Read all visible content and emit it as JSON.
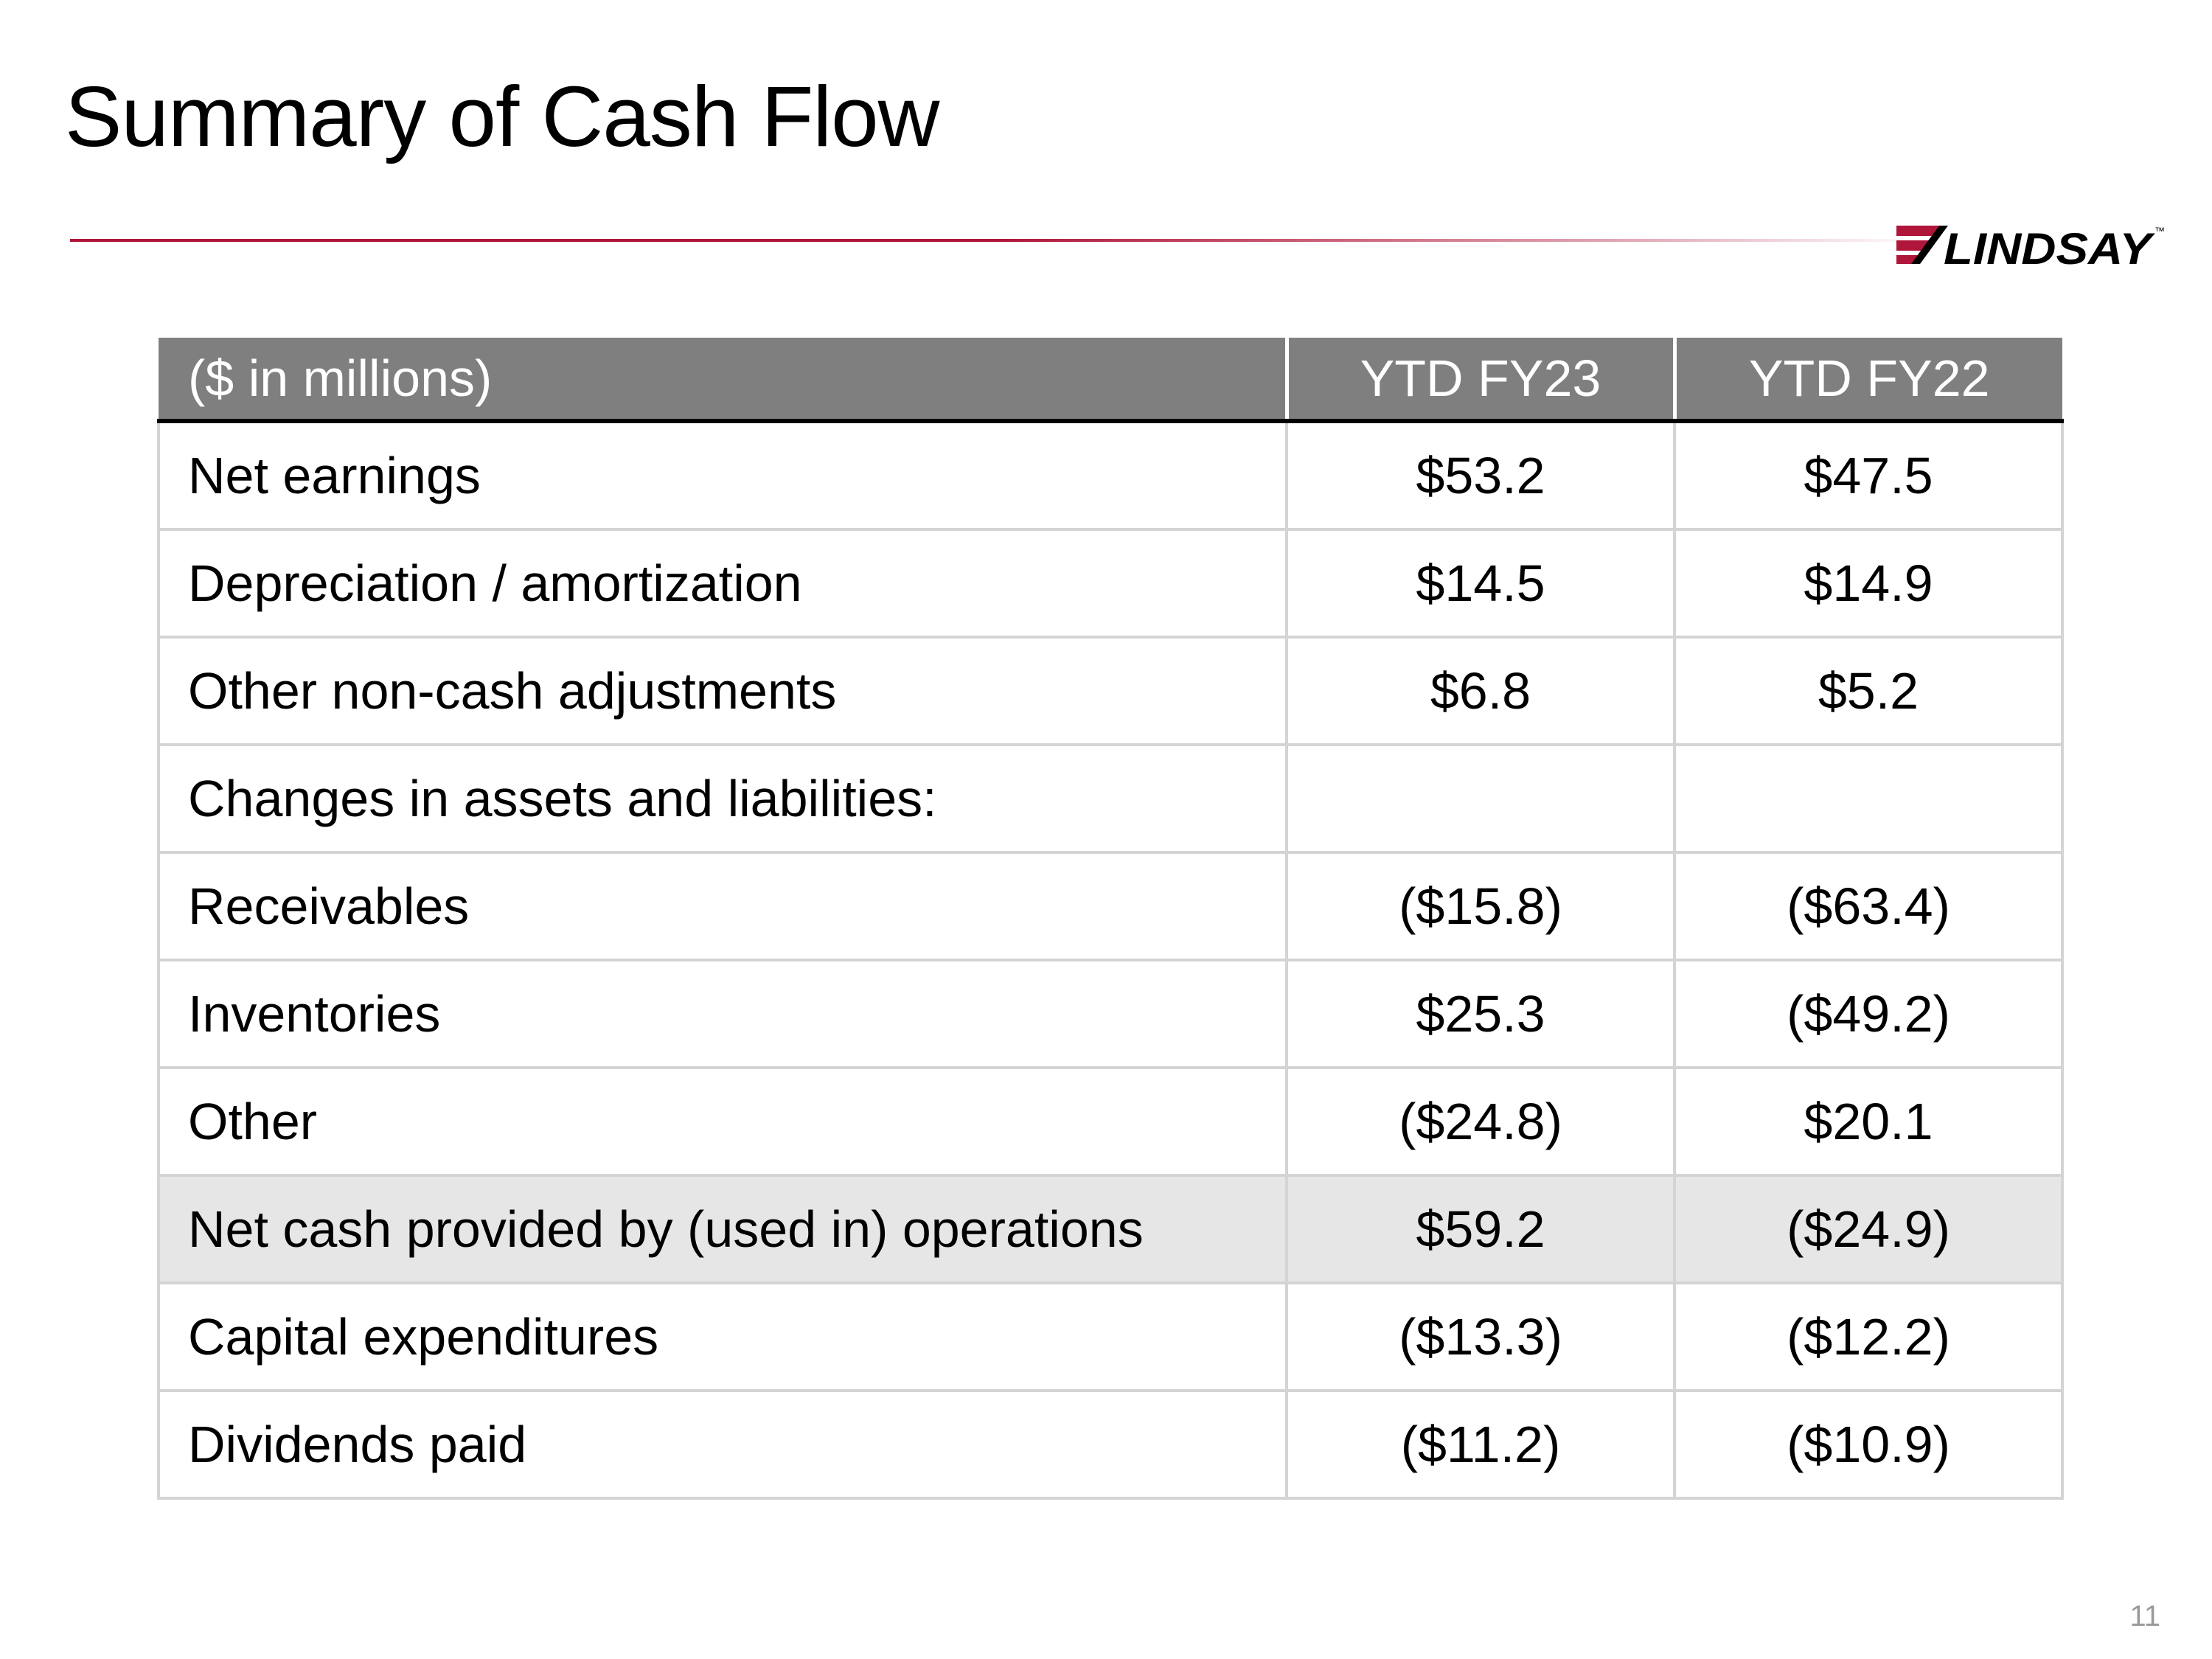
{
  "slide": {
    "title": "Summary of Cash Flow",
    "page_number": "11",
    "accent_color": "#b0163a"
  },
  "logo": {
    "text": "LINDSAY",
    "trademark": "™",
    "icon": "lindsay-stripes-logo"
  },
  "table": {
    "headers": [
      "($ in millions)",
      "YTD FY23",
      "YTD FY22"
    ],
    "rows": [
      {
        "label": "Net earnings",
        "fy23": "$53.2",
        "fy22": "$47.5"
      },
      {
        "label": "Depreciation / amortization",
        "fy23": "$14.5",
        "fy22": "$14.9"
      },
      {
        "label": "Other non-cash adjustments",
        "fy23": "$6.8",
        "fy22": "$5.2"
      },
      {
        "label": "Changes in assets and liabilities:",
        "fy23": "",
        "fy22": ""
      },
      {
        "label": "Receivables",
        "fy23": "($15.8)",
        "fy22": "($63.4)"
      },
      {
        "label": "Inventories",
        "fy23": "$25.3",
        "fy22": "($49.2)"
      },
      {
        "label": "Other",
        "fy23": "($24.8)",
        "fy22": "$20.1"
      },
      {
        "label": "Net cash provided by (used in) operations",
        "fy23": "$59.2",
        "fy22": "($24.9)"
      },
      {
        "label": "Capital expenditures",
        "fy23": "($13.3)",
        "fy22": "($12.2)"
      },
      {
        "label": "Dividends paid",
        "fy23": "($11.2)",
        "fy22": "($10.9)"
      }
    ]
  }
}
